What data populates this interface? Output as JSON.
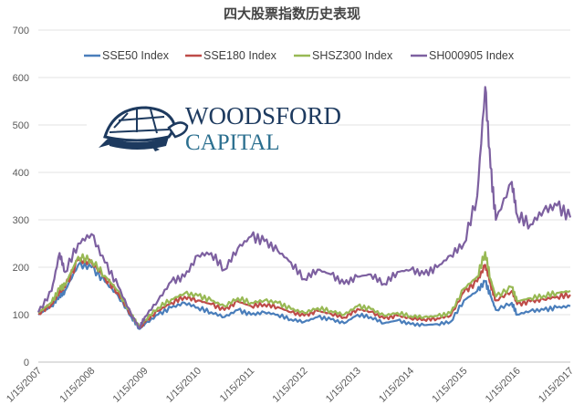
{
  "chart_data": {
    "type": "line",
    "title": "四大股票指数历史表现",
    "xlabel": "",
    "ylabel": "",
    "ylim": [
      0,
      700
    ],
    "yticks": [
      "0",
      "100",
      "200",
      "300",
      "400",
      "500",
      "600",
      "700"
    ],
    "xticks": [
      "1/15/2007",
      "1/15/2008",
      "1/15/2009",
      "1/15/2010",
      "1/15/2011",
      "1/15/2012",
      "1/15/2013",
      "1/15/2014",
      "1/15/2015",
      "1/15/2016",
      "1/15/2017"
    ],
    "grid": true,
    "legend_position": "top",
    "x": [
      2007.0,
      2007.25,
      2007.4,
      2007.5,
      2007.75,
      2008.0,
      2008.25,
      2008.5,
      2008.75,
      2008.9,
      2009.0,
      2009.25,
      2009.5,
      2009.75,
      2010.0,
      2010.25,
      2010.5,
      2010.75,
      2011.0,
      2011.25,
      2011.5,
      2011.75,
      2012.0,
      2012.25,
      2012.5,
      2012.75,
      2013.0,
      2013.25,
      2013.5,
      2013.75,
      2014.0,
      2014.25,
      2014.5,
      2014.75,
      2015.0,
      2015.25,
      2015.4,
      2015.5,
      2015.6,
      2015.9,
      2016.0,
      2016.25,
      2016.5,
      2016.75,
      2017.0
    ],
    "series": [
      {
        "name": "SSE50 Index",
        "color": "#4a7ebb",
        "values": [
          100,
          118,
          140,
          150,
          205,
          200,
          170,
          140,
          95,
          70,
          80,
          100,
          115,
          125,
          115,
          105,
          95,
          110,
          100,
          105,
          100,
          90,
          85,
          95,
          90,
          82,
          100,
          95,
          82,
          88,
          80,
          78,
          80,
          85,
          130,
          150,
          170,
          140,
          110,
          125,
          100,
          108,
          110,
          115,
          118
        ]
      },
      {
        "name": "SSE180 Index",
        "color": "#be4b48",
        "values": [
          102,
          122,
          148,
          158,
          215,
          210,
          178,
          146,
          98,
          72,
          84,
          108,
          125,
          138,
          130,
          122,
          110,
          128,
          118,
          122,
          116,
          105,
          98,
          108,
          102,
          94,
          112,
          106,
          92,
          98,
          92,
          90,
          92,
          98,
          148,
          170,
          205,
          165,
          130,
          150,
          122,
          128,
          132,
          138,
          142
        ]
      },
      {
        "name": "SHSZ300 Index",
        "color": "#98b954",
        "values": [
          104,
          126,
          155,
          162,
          222,
          215,
          182,
          150,
          100,
          74,
          88,
          115,
          132,
          145,
          140,
          130,
          118,
          135,
          125,
          130,
          125,
          112,
          104,
          114,
          108,
          100,
          118,
          112,
          98,
          104,
          97,
          95,
          97,
          103,
          155,
          180,
          232,
          175,
          138,
          158,
          128,
          135,
          140,
          146,
          150
        ]
      },
      {
        "name": "SH000905 Index",
        "color": "#7d60a0",
        "values": [
          105,
          150,
          230,
          190,
          250,
          270,
          210,
          160,
          100,
          72,
          95,
          130,
          170,
          180,
          225,
          230,
          195,
          240,
          265,
          255,
          235,
          210,
          175,
          195,
          185,
          165,
          180,
          185,
          165,
          190,
          195,
          185,
          200,
          225,
          250,
          350,
          580,
          410,
          300,
          380,
          310,
          290,
          320,
          330,
          305
        ]
      }
    ]
  },
  "logo": {
    "line1": "WOODSFORD",
    "line2": "CAPITAL"
  }
}
